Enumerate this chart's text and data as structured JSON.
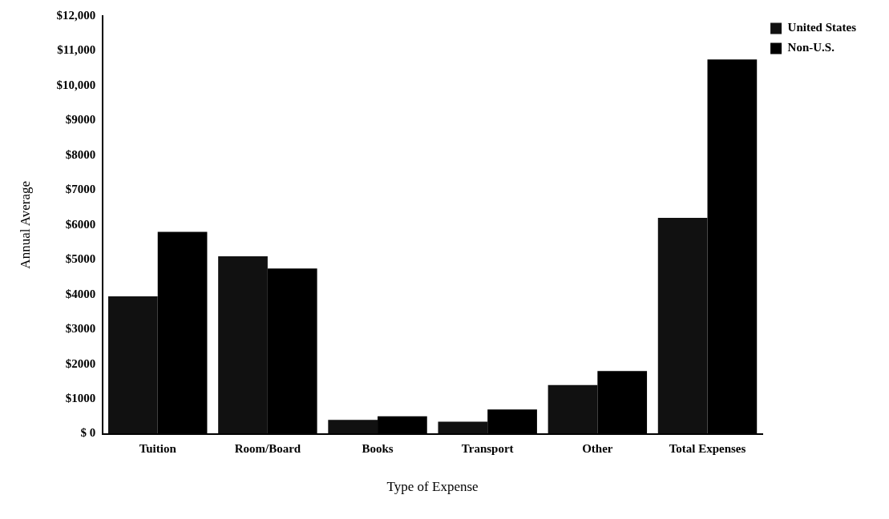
{
  "chart_data": {
    "type": "bar",
    "xlabel": "Type of Expense",
    "ylabel": "Annual Average",
    "categories": [
      "Tuition",
      "Room/Board",
      "Books",
      "Transport",
      "Other",
      "Total Expenses"
    ],
    "series": [
      {
        "name": "United States",
        "color": "#111111",
        "values": [
          3950,
          5100,
          400,
          350,
          1400,
          6200
        ]
      },
      {
        "name": "Non-U.S.",
        "color": "#000000",
        "values": [
          5800,
          4750,
          500,
          700,
          1800,
          10750
        ]
      }
    ],
    "ylim": [
      0,
      12000
    ],
    "yticks": [
      {
        "value": 0,
        "label": "$ 0"
      },
      {
        "value": 1000,
        "label": "$1000"
      },
      {
        "value": 2000,
        "label": "$2000"
      },
      {
        "value": 3000,
        "label": "$3000"
      },
      {
        "value": 4000,
        "label": "$4000"
      },
      {
        "value": 5000,
        "label": "$5000"
      },
      {
        "value": 6000,
        "label": "$6000"
      },
      {
        "value": 7000,
        "label": "$7000"
      },
      {
        "value": 8000,
        "label": "$8000"
      },
      {
        "value": 9000,
        "label": "$9000"
      },
      {
        "value": 10000,
        "label": "$10,000"
      },
      {
        "value": 11000,
        "label": "$11,000"
      },
      {
        "value": 12000,
        "label": "$12,000"
      }
    ],
    "grid": false,
    "legend": "right"
  }
}
